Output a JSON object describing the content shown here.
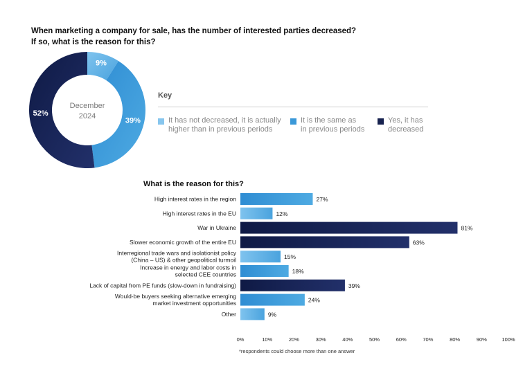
{
  "question": {
    "line1": "When marketing a company for sale, has the number of interested parties decreased?",
    "line2": "If so, what is the reason for this?"
  },
  "colors": {
    "light_blue": "#87c6ee",
    "mid_blue": "#3a98d8",
    "dark_navy": "#17224f",
    "gradient_light_blue": [
      "#7fc3ee",
      "#4aa3de"
    ],
    "gradient_mid_blue": [
      "#2f8dd3",
      "#4eaae2"
    ],
    "gradient_dark_navy": [
      "#0f1a45",
      "#22306a"
    ]
  },
  "key": {
    "title": "Key",
    "items": [
      {
        "label": "It has not decreased, it is actually\nhigher than in previous periods",
        "color": "#87c6ee"
      },
      {
        "label": "It is the same as\nin previous periods",
        "color": "#3a98d8"
      },
      {
        "label": "Yes, it has\ndecreased",
        "color": "#17224f"
      }
    ]
  },
  "reasons_title": "What is the reason for this?",
  "footnote": "*respondents could choose more than one answer",
  "chart_data": [
    {
      "type": "pie",
      "center_label": [
        "December",
        "2024"
      ],
      "categories": [
        "It has not decreased, it is actually higher than in previous periods",
        "It is the same as in previous periods",
        "Yes, it has decreased"
      ],
      "values": [
        9,
        39,
        52
      ],
      "value_labels": [
        "9%",
        "39%",
        "52%"
      ],
      "colors": [
        "#87c6ee",
        "#3a98d8",
        "#17224f"
      ]
    },
    {
      "type": "bar",
      "orientation": "horizontal",
      "title": "What is the reason for this?",
      "categories": [
        [
          "High interest rates in the region"
        ],
        [
          "High interest rates in the EU"
        ],
        [
          "War in Ukraine"
        ],
        [
          "Slower economic growth of the entire EU"
        ],
        [
          "Interregional trade wars and isolationist policy",
          "(China – US) & other geopolitical turmoil"
        ],
        [
          "Increase in energy and labor costs in",
          "selected CEE countries"
        ],
        [
          "Lack of capital from PE funds (slow-down in fundraising)"
        ],
        [
          "Would-be buyers seeking alternative emerging",
          "market investment opportunities"
        ],
        [
          "Other"
        ]
      ],
      "values": [
        27,
        12,
        81,
        63,
        15,
        18,
        39,
        24,
        9
      ],
      "value_labels": [
        "27%",
        "12%",
        "81%",
        "63%",
        "15%",
        "18%",
        "39%",
        "24%",
        "9%"
      ],
      "bar_colors": [
        "mid_blue",
        "light_blue",
        "dark_navy",
        "dark_navy",
        "light_blue",
        "mid_blue",
        "dark_navy",
        "mid_blue",
        "light_blue"
      ],
      "xlim": [
        0,
        100
      ],
      "x_ticks": [
        "0%",
        "10%",
        "20%",
        "30%",
        "40%",
        "50%",
        "60%",
        "70%",
        "80%",
        "90%",
        "100%"
      ],
      "grid": false
    }
  ]
}
